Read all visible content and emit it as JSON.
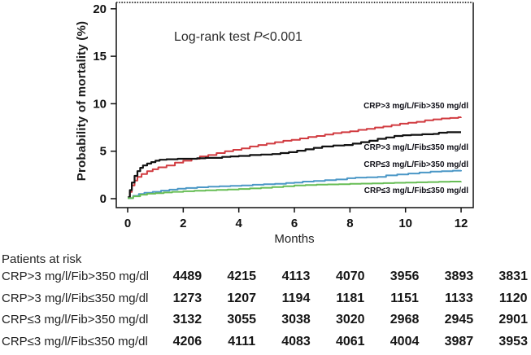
{
  "chart_data": {
    "type": "line",
    "subtype": "kaplan-meier-step",
    "annotation": {
      "prefix": "Log-rank test ",
      "italic": "P",
      "suffix": "<0.001"
    },
    "xlabel": "Months",
    "ylabel": "Probability of mortality (%)",
    "xlim": [
      0,
      12
    ],
    "ylim": [
      0,
      20
    ],
    "xticks": [
      0,
      2,
      4,
      6,
      8,
      10,
      12
    ],
    "yticks": [
      0,
      5,
      10,
      15,
      20
    ],
    "grid": "off",
    "legend_position": "inline-right-labels",
    "axis_color": "#111111",
    "series": [
      {
        "name": "CRP>3 mg/L/Fib>350 mg/dl",
        "color": "#d13b40",
        "points": [
          [
            0,
            0.1
          ],
          [
            0.08,
            0.7
          ],
          [
            0.15,
            1.4
          ],
          [
            0.25,
            1.9
          ],
          [
            0.35,
            2.3
          ],
          [
            0.5,
            2.6
          ],
          [
            0.7,
            2.9
          ],
          [
            0.9,
            3.1
          ],
          [
            1.1,
            3.3
          ],
          [
            1.4,
            3.5
          ],
          [
            1.7,
            3.8
          ],
          [
            2,
            4.0
          ],
          [
            2.3,
            4.2
          ],
          [
            2.6,
            4.45
          ],
          [
            2.9,
            4.6
          ],
          [
            3.2,
            4.8
          ],
          [
            3.5,
            5.0
          ],
          [
            3.8,
            5.15
          ],
          [
            4.1,
            5.3
          ],
          [
            4.4,
            5.5
          ],
          [
            4.7,
            5.65
          ],
          [
            5,
            5.8
          ],
          [
            5.3,
            5.95
          ],
          [
            5.6,
            6.1
          ],
          [
            5.9,
            6.2
          ],
          [
            6.2,
            6.35
          ],
          [
            6.5,
            6.5
          ],
          [
            6.8,
            6.6
          ],
          [
            7.1,
            6.75
          ],
          [
            7.4,
            6.9
          ],
          [
            7.7,
            7.0
          ],
          [
            8,
            7.1
          ],
          [
            8.3,
            7.25
          ],
          [
            8.6,
            7.35
          ],
          [
            8.9,
            7.5
          ],
          [
            9.2,
            7.6
          ],
          [
            9.5,
            7.75
          ],
          [
            9.8,
            7.9
          ],
          [
            10.1,
            8.0
          ],
          [
            10.4,
            8.1
          ],
          [
            10.7,
            8.25
          ],
          [
            11,
            8.35
          ],
          [
            11.3,
            8.45
          ],
          [
            11.6,
            8.5
          ],
          [
            11.9,
            8.58
          ],
          [
            12,
            8.6
          ]
        ]
      },
      {
        "name": "CRP>3 mg/L/Fib≤350 mg/dl",
        "color": "#111111",
        "points": [
          [
            0,
            0.15
          ],
          [
            0.08,
            0.9
          ],
          [
            0.15,
            1.7
          ],
          [
            0.25,
            2.4
          ],
          [
            0.35,
            2.9
          ],
          [
            0.45,
            3.25
          ],
          [
            0.55,
            3.5
          ],
          [
            0.7,
            3.7
          ],
          [
            0.85,
            3.85
          ],
          [
            1,
            4.0
          ],
          [
            1.15,
            4.1
          ],
          [
            1.4,
            4.15
          ],
          [
            1.8,
            4.2
          ],
          [
            2.2,
            4.2
          ],
          [
            2.5,
            4.25
          ],
          [
            2.8,
            4.3
          ],
          [
            3.1,
            4.3
          ],
          [
            3.4,
            4.4
          ],
          [
            3.7,
            4.45
          ],
          [
            4,
            4.5
          ],
          [
            4.4,
            4.6
          ],
          [
            4.8,
            4.65
          ],
          [
            5.2,
            4.7
          ],
          [
            5.5,
            4.8
          ],
          [
            5.8,
            4.9
          ],
          [
            6.1,
            5.05
          ],
          [
            6.4,
            5.2
          ],
          [
            6.7,
            5.35
          ],
          [
            7,
            5.5
          ],
          [
            7.4,
            5.6
          ],
          [
            7.8,
            5.65
          ],
          [
            8.1,
            5.8
          ],
          [
            8.4,
            5.95
          ],
          [
            8.7,
            6.1
          ],
          [
            9,
            6.3
          ],
          [
            9.3,
            6.45
          ],
          [
            9.6,
            6.6
          ],
          [
            9.9,
            6.68
          ],
          [
            10.2,
            6.72
          ],
          [
            10.6,
            6.78
          ],
          [
            11,
            6.82
          ],
          [
            11.2,
            6.95
          ],
          [
            11.5,
            7.0
          ],
          [
            12,
            7.0
          ]
        ]
      },
      {
        "name": "CRP≤3 mg/L/Fib>350 mg/dl",
        "color": "#4b97c6",
        "points": [
          [
            0,
            0.05
          ],
          [
            0.2,
            0.3
          ],
          [
            0.4,
            0.5
          ],
          [
            0.6,
            0.62
          ],
          [
            0.9,
            0.72
          ],
          [
            1.2,
            0.85
          ],
          [
            1.5,
            0.95
          ],
          [
            1.8,
            1.05
          ],
          [
            2.1,
            1.12
          ],
          [
            2.5,
            1.2
          ],
          [
            2.9,
            1.27
          ],
          [
            3.3,
            1.3
          ],
          [
            3.7,
            1.35
          ],
          [
            4.1,
            1.4
          ],
          [
            4.5,
            1.47
          ],
          [
            4.9,
            1.52
          ],
          [
            5.3,
            1.57
          ],
          [
            5.7,
            1.65
          ],
          [
            6,
            1.7
          ],
          [
            6.3,
            1.8
          ],
          [
            6.7,
            1.87
          ],
          [
            7.1,
            1.95
          ],
          [
            7.5,
            2.02
          ],
          [
            7.9,
            2.15
          ],
          [
            8.2,
            2.22
          ],
          [
            8.6,
            2.25
          ],
          [
            9,
            2.3
          ],
          [
            9.3,
            2.45
          ],
          [
            9.7,
            2.55
          ],
          [
            10.1,
            2.65
          ],
          [
            10.5,
            2.75
          ],
          [
            10.9,
            2.85
          ],
          [
            11.3,
            2.9
          ],
          [
            11.7,
            2.95
          ],
          [
            12,
            3.0
          ]
        ]
      },
      {
        "name": "CRP≤3 mg/L/Fib≤350 mg/dl",
        "color": "#67bd55",
        "points": [
          [
            0,
            0.05
          ],
          [
            0.2,
            0.25
          ],
          [
            0.45,
            0.42
          ],
          [
            0.7,
            0.52
          ],
          [
            1,
            0.58
          ],
          [
            1.3,
            0.65
          ],
          [
            1.6,
            0.72
          ],
          [
            2,
            0.78
          ],
          [
            2.4,
            0.84
          ],
          [
            2.8,
            0.88
          ],
          [
            3.2,
            0.93
          ],
          [
            3.6,
            0.97
          ],
          [
            4,
            1.02
          ],
          [
            4.4,
            1.08
          ],
          [
            4.8,
            1.15
          ],
          [
            5.2,
            1.22
          ],
          [
            5.6,
            1.3
          ],
          [
            6,
            1.4
          ],
          [
            6.4,
            1.44
          ],
          [
            6.8,
            1.48
          ],
          [
            7.2,
            1.5
          ],
          [
            7.6,
            1.52
          ],
          [
            8,
            1.56
          ],
          [
            8.4,
            1.59
          ],
          [
            8.8,
            1.61
          ],
          [
            9.2,
            1.64
          ],
          [
            9.6,
            1.67
          ],
          [
            10,
            1.7
          ],
          [
            10.4,
            1.72
          ],
          [
            10.8,
            1.75
          ],
          [
            11.2,
            1.78
          ],
          [
            11.6,
            1.8
          ],
          [
            12,
            1.82
          ]
        ]
      }
    ]
  },
  "risk_table": {
    "heading": "Patients at risk",
    "rows": [
      {
        "label": "CRP>3 mg/l/Fib>350 mg/dl",
        "counts": [
          "4489",
          "4215",
          "4113",
          "4070",
          "3956",
          "3893",
          "3831"
        ]
      },
      {
        "label": "CRP>3 mg/l/Fib≤350 mg/dl",
        "counts": [
          "1273",
          "1207",
          "1194",
          "1181",
          "1151",
          "1133",
          "1120"
        ]
      },
      {
        "label": "CRP≤3 mg/l/Fib>350 mg/dl",
        "counts": [
          "3132",
          "3055",
          "3038",
          "3020",
          "2968",
          "2945",
          "2901"
        ]
      },
      {
        "label": "CRP≤3 mg/l/Fib≤350 mg/dl",
        "counts": [
          "4206",
          "4111",
          "4083",
          "4061",
          "4004",
          "3987",
          "3953"
        ]
      }
    ]
  }
}
